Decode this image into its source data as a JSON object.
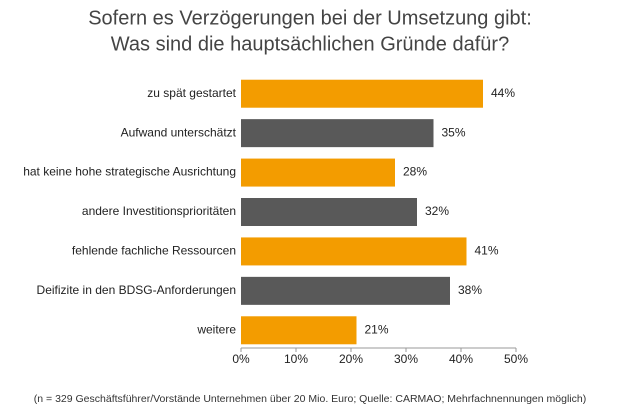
{
  "chart_data": {
    "type": "barh",
    "title": [
      "Sofern es Verzögerungen bei der Umsetzung gibt:",
      "Was sind die hauptsächlichen Gründe dafür?"
    ],
    "categories": [
      "zu spät gestartet",
      "Aufwand unterschätzt",
      "hat keine hohe strategische Ausrichtung",
      "andere Investitionsprioritäten",
      "fehlende fachliche Ressourcen",
      "Deifizite in den BDSG-Anforderungen",
      "weitere"
    ],
    "values": [
      44,
      35,
      28,
      32,
      41,
      38,
      21
    ],
    "value_labels": [
      "44%",
      "35%",
      "28%",
      "32%",
      "41%",
      "38%",
      "21%"
    ],
    "colors": [
      "#f39c00",
      "#595959",
      "#f39c00",
      "#595959",
      "#f39c00",
      "#595959",
      "#f39c00"
    ],
    "xlim": [
      0,
      50
    ],
    "xticks": [
      {
        "value": 0,
        "label": "0%"
      },
      {
        "value": 10,
        "label": "10%"
      },
      {
        "value": 20,
        "label": "20%"
      },
      {
        "value": 30,
        "label": "30%"
      },
      {
        "value": 40,
        "label": "40%"
      },
      {
        "value": 50,
        "label": "50%"
      }
    ],
    "note": "(n = 329 Geschäftsführer/Vorstände Unternehmen über 20 Mio. Euro; Quelle: CARMAO; Mehrfachnennungen möglich)"
  }
}
